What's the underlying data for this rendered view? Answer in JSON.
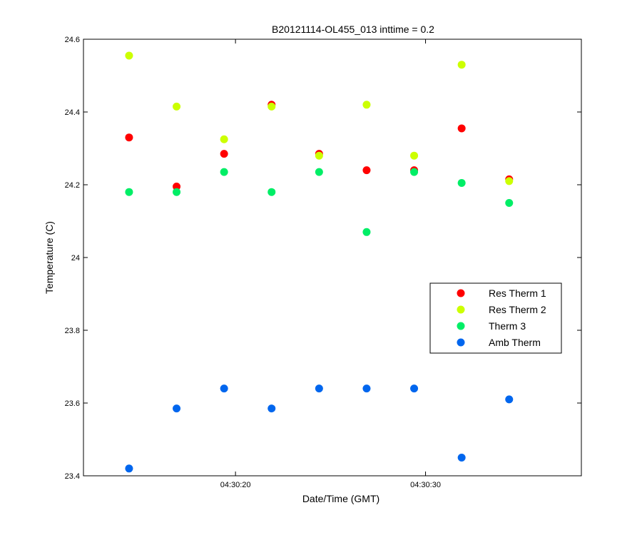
{
  "chart_data": {
    "type": "scatter",
    "title": "B20121114-OL455_013 inttime = 0.2",
    "xlabel": "Date/Time (GMT)",
    "ylabel": "Temperature (C)",
    "x": [
      "04:30:14.4",
      "04:30:16.9",
      "04:30:19.4",
      "04:30:21.9",
      "04:30:24.4",
      "04:30:26.9",
      "04:30:29.4",
      "04:30:31.9",
      "04:30:34.4"
    ],
    "xlim": [
      "04:30:12.0",
      "04:30:38.2"
    ],
    "ylim": [
      23.4,
      24.6
    ],
    "x_ticks": [
      "04:30:20",
      "04:30:30"
    ],
    "y_ticks": [
      "23.4",
      "23.6",
      "23.8",
      "24",
      "24.2",
      "24.4",
      "24.6"
    ],
    "grid": false,
    "legend_position": "right",
    "series": [
      {
        "name": "Res Therm 1",
        "color": "#ff0000",
        "values": [
          24.33,
          24.195,
          24.285,
          24.42,
          24.285,
          24.24,
          24.24,
          24.355,
          24.215
        ]
      },
      {
        "name": "Res Therm 2",
        "color": "#ccff00",
        "values": [
          24.555,
          24.415,
          24.325,
          24.415,
          24.28,
          24.42,
          24.28,
          24.53,
          24.21
        ]
      },
      {
        "name": "Therm 3",
        "color": "#00ee66",
        "values": [
          24.18,
          24.18,
          24.235,
          24.18,
          24.235,
          24.07,
          24.235,
          24.205,
          24.15
        ]
      },
      {
        "name": "Amb Therm",
        "color": "#0066ee",
        "values": [
          23.42,
          23.585,
          23.64,
          23.585,
          23.64,
          23.64,
          23.64,
          23.45,
          23.61
        ]
      }
    ]
  }
}
